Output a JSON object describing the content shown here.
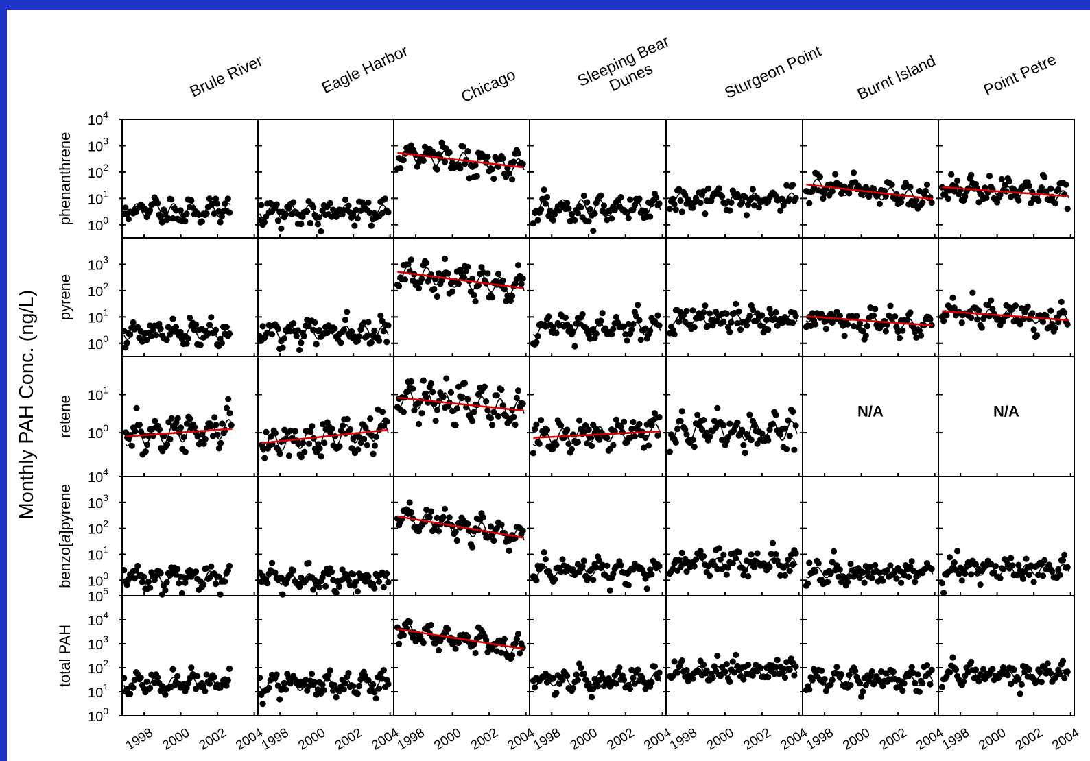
{
  "chart_data": {
    "type": "scatter",
    "ylabel": "Monthly PAH Conc. (ng/L)",
    "sites": [
      "Brule River",
      "Eagle Harbor",
      "Chicago",
      "Sleeping Bear Dunes",
      "Sturgeon Point",
      "Burnt Island",
      "Point Petre"
    ],
    "site_label_lines": [
      [
        "Brule River"
      ],
      [
        "Eagle Harbor"
      ],
      [
        "Chicago"
      ],
      [
        "Sleeping Bear",
        "Dunes"
      ],
      [
        "Sturgeon Point"
      ],
      [
        "Burnt Island"
      ],
      [
        "Point Petre"
      ]
    ],
    "x_ticks": [
      "1998",
      "2000",
      "2002",
      "2004"
    ],
    "x_range": [
      1996.8,
      2004.2
    ],
    "rows": [
      {
        "compound": "phenanthrene",
        "ylog_range": [
          -0.5,
          4
        ],
        "y_ticks": [
          "10",
          "10",
          "10",
          "10",
          "10"
        ],
        "y_tick_exps": [
          "0",
          "1",
          "2",
          "3",
          "4"
        ],
        "panels": [
          {
            "site": "Brule River",
            "start": 1996.9,
            "end": 2002.7,
            "level": 0.55,
            "amp": 0.25,
            "trend": 0,
            "seed": 11,
            "show_trend": false,
            "na": false
          },
          {
            "site": "Eagle Harbor",
            "start": 1996.9,
            "end": 2003.9,
            "level": 0.5,
            "amp": 0.25,
            "trend": 0,
            "seed": 12,
            "show_trend": false,
            "na": false
          },
          {
            "site": "Chicago",
            "start": 1997.0,
            "end": 2003.9,
            "level": 2.45,
            "amp": 0.3,
            "trend": -0.08,
            "seed": 13,
            "show_trend": true,
            "na": false
          },
          {
            "site": "Sleeping Bear Dunes",
            "start": 1997.0,
            "end": 2003.9,
            "level": 0.65,
            "amp": 0.3,
            "trend": 0,
            "seed": 14,
            "show_trend": false,
            "na": false
          },
          {
            "site": "Sturgeon Point",
            "start": 1997.0,
            "end": 2003.9,
            "level": 1.0,
            "amp": 0.2,
            "trend": 0,
            "seed": 15,
            "show_trend": false,
            "na": false
          },
          {
            "site": "Burnt Island",
            "start": 1997.0,
            "end": 2003.9,
            "level": 1.25,
            "amp": 0.25,
            "trend": -0.08,
            "seed": 16,
            "show_trend": true,
            "na": false
          },
          {
            "site": "Point Petre",
            "start": 1997.0,
            "end": 2003.9,
            "level": 1.25,
            "amp": 0.2,
            "trend": -0.05,
            "seed": 17,
            "show_trend": true,
            "na": false
          }
        ]
      },
      {
        "compound": "pyrene",
        "ylog_range": [
          -0.5,
          4
        ],
        "y_ticks": [
          "10",
          "10",
          "10",
          "10"
        ],
        "y_tick_exps": [
          "0",
          "1",
          "2",
          "3"
        ],
        "panels": [
          {
            "site": "Brule River",
            "start": 1996.9,
            "end": 2002.7,
            "level": 0.4,
            "amp": 0.25,
            "trend": 0,
            "seed": 21,
            "show_trend": false,
            "na": false
          },
          {
            "site": "Eagle Harbor",
            "start": 1996.9,
            "end": 2003.9,
            "level": 0.4,
            "amp": 0.25,
            "trend": 0,
            "seed": 22,
            "show_trend": false,
            "na": false
          },
          {
            "site": "Chicago",
            "start": 1997.0,
            "end": 2003.9,
            "level": 2.4,
            "amp": 0.3,
            "trend": -0.09,
            "seed": 23,
            "show_trend": true,
            "na": false
          },
          {
            "site": "Sleeping Bear Dunes",
            "start": 1997.0,
            "end": 2003.9,
            "level": 0.55,
            "amp": 0.25,
            "trend": 0,
            "seed": 24,
            "show_trend": false,
            "na": false
          },
          {
            "site": "Sturgeon Point",
            "start": 1997.0,
            "end": 2003.9,
            "level": 0.9,
            "amp": 0.2,
            "trend": 0,
            "seed": 25,
            "show_trend": false,
            "na": false
          },
          {
            "site": "Burnt Island",
            "start": 1997.0,
            "end": 2003.9,
            "level": 0.85,
            "amp": 0.2,
            "trend": -0.05,
            "seed": 26,
            "show_trend": true,
            "na": false
          },
          {
            "site": "Point Petre",
            "start": 1997.0,
            "end": 2003.9,
            "level": 1.05,
            "amp": 0.2,
            "trend": -0.05,
            "seed": 27,
            "show_trend": true,
            "na": false
          }
        ]
      },
      {
        "compound": "retene",
        "ylog_range": [
          -1.15,
          2
        ],
        "y_ticks": [
          "10",
          "10"
        ],
        "y_tick_exps": [
          "0",
          "1"
        ],
        "panels": [
          {
            "site": "Brule River",
            "start": 1997.0,
            "end": 2002.8,
            "level": 0.0,
            "amp": 0.25,
            "trend": 0.035,
            "seed": 31,
            "show_trend": true,
            "na": false
          },
          {
            "site": "Eagle Harbor",
            "start": 1997.0,
            "end": 2003.9,
            "level": -0.1,
            "amp": 0.25,
            "trend": 0.05,
            "seed": 32,
            "show_trend": true,
            "na": false
          },
          {
            "site": "Chicago",
            "start": 1997.0,
            "end": 2003.9,
            "level": 0.75,
            "amp": 0.25,
            "trend": -0.05,
            "seed": 33,
            "show_trend": true,
            "na": false
          },
          {
            "site": "Sleeping Bear Dunes",
            "start": 1997.0,
            "end": 2003.9,
            "level": -0.05,
            "amp": 0.2,
            "trend": 0.025,
            "seed": 34,
            "show_trend": true,
            "na": false
          },
          {
            "site": "Sturgeon Point",
            "start": 1997.0,
            "end": 2003.9,
            "level": 0.05,
            "amp": 0.25,
            "trend": 0,
            "seed": 35,
            "show_trend": false,
            "na": false
          },
          {
            "site": "Burnt Island",
            "na": true,
            "na_label": "N/A"
          },
          {
            "site": "Point Petre",
            "na": true,
            "na_label": "N/A"
          }
        ]
      },
      {
        "compound": "benzo[a]pyrene",
        "compound_parts": [
          "benzo[",
          "a",
          "]pyrene"
        ],
        "ylog_range": [
          -0.6,
          4
        ],
        "y_ticks": [
          "10",
          "10",
          "10",
          "10",
          "10"
        ],
        "y_tick_exps": [
          "0",
          "1",
          "2",
          "3",
          "4"
        ],
        "panels": [
          {
            "site": "Brule River",
            "start": 1996.9,
            "end": 2002.7,
            "level": 0.1,
            "amp": 0.25,
            "trend": 0,
            "seed": 41,
            "show_trend": false,
            "na": false
          },
          {
            "site": "Eagle Harbor",
            "start": 1996.9,
            "end": 2003.9,
            "level": 0.05,
            "amp": 0.2,
            "trend": 0,
            "seed": 42,
            "show_trend": false,
            "na": false
          },
          {
            "site": "Chicago",
            "start": 1997.0,
            "end": 2003.9,
            "level": 2.05,
            "amp": 0.3,
            "trend": -0.12,
            "seed": 43,
            "show_trend": true,
            "na": false
          },
          {
            "site": "Sleeping Bear Dunes",
            "start": 1997.0,
            "end": 2003.9,
            "level": 0.35,
            "amp": 0.2,
            "trend": 0,
            "seed": 44,
            "show_trend": false,
            "na": false
          },
          {
            "site": "Sturgeon Point",
            "start": 1997.0,
            "end": 2003.9,
            "level": 0.65,
            "amp": 0.2,
            "trend": 0,
            "seed": 45,
            "show_trend": false,
            "na": false
          },
          {
            "site": "Burnt Island",
            "start": 1997.0,
            "end": 2003.9,
            "level": 0.3,
            "amp": 0.2,
            "trend": 0,
            "seed": 46,
            "show_trend": false,
            "na": false
          },
          {
            "site": "Point Petre",
            "start": 1997.0,
            "end": 2003.9,
            "level": 0.4,
            "amp": 0.2,
            "trend": 0,
            "seed": 47,
            "show_trend": false,
            "na": false
          }
        ]
      },
      {
        "compound": "total PAH",
        "ylog_range": [
          0,
          5
        ],
        "y_ticks": [
          "10",
          "10",
          "10",
          "10",
          "10",
          "10"
        ],
        "y_tick_exps": [
          "0",
          "1",
          "2",
          "3",
          "4",
          "5"
        ],
        "panels": [
          {
            "site": "Brule River",
            "start": 1996.9,
            "end": 2002.7,
            "level": 1.35,
            "amp": 0.25,
            "trend": 0,
            "seed": 51,
            "show_trend": false,
            "na": false
          },
          {
            "site": "Eagle Harbor",
            "start": 1996.9,
            "end": 2003.9,
            "level": 1.3,
            "amp": 0.25,
            "trend": 0,
            "seed": 52,
            "show_trend": false,
            "na": false
          },
          {
            "site": "Chicago",
            "start": 1997.0,
            "end": 2003.9,
            "level": 3.2,
            "amp": 0.3,
            "trend": -0.12,
            "seed": 53,
            "show_trend": true,
            "na": false
          },
          {
            "site": "Sleeping Bear Dunes",
            "start": 1997.0,
            "end": 2003.9,
            "level": 1.5,
            "amp": 0.25,
            "trend": 0,
            "seed": 54,
            "show_trend": false,
            "na": false
          },
          {
            "site": "Sturgeon Point",
            "start": 1997.0,
            "end": 2003.9,
            "level": 1.85,
            "amp": 0.2,
            "trend": 0,
            "seed": 55,
            "show_trend": false,
            "na": false
          },
          {
            "site": "Burnt Island",
            "start": 1997.0,
            "end": 2003.9,
            "level": 1.5,
            "amp": 0.25,
            "trend": 0,
            "seed": 56,
            "show_trend": false,
            "na": false
          },
          {
            "site": "Point Petre",
            "start": 1997.0,
            "end": 2003.9,
            "level": 1.7,
            "amp": 0.2,
            "trend": 0,
            "seed": 57,
            "show_trend": false,
            "na": false
          }
        ]
      }
    ],
    "colors": {
      "points": "#000000",
      "fit": "#000000",
      "trend": "#e00000",
      "frame": "#000000",
      "background": "#ffffff",
      "border": "#1e35c8"
    }
  }
}
